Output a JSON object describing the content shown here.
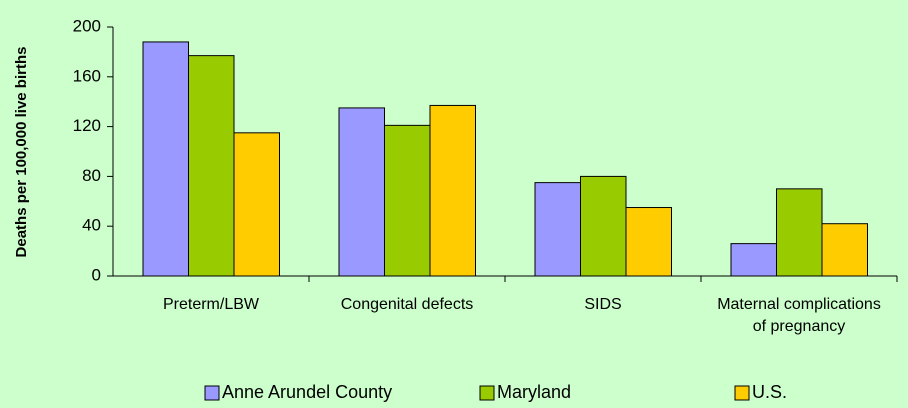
{
  "chart_data": {
    "type": "bar",
    "y_label": "Deaths per 100,000 live births",
    "categories": [
      "Preterm/LBW",
      "Congenital defects",
      "SIDS",
      "Maternal complications of pregnancy"
    ],
    "series": [
      {
        "name": "Anne Arundel County",
        "color": "#9999ff",
        "values": [
          188,
          135,
          75,
          26
        ]
      },
      {
        "name": "Maryland",
        "color": "#99cc00",
        "values": [
          177,
          121,
          80,
          70
        ]
      },
      {
        "name": "U.S.",
        "color": "#ffcc00",
        "values": [
          115,
          137,
          55,
          42
        ]
      }
    ],
    "ylim": [
      0,
      200
    ],
    "yticks": [
      0,
      40,
      80,
      120,
      160,
      200
    ],
    "grid": false,
    "legend": "bottom"
  }
}
